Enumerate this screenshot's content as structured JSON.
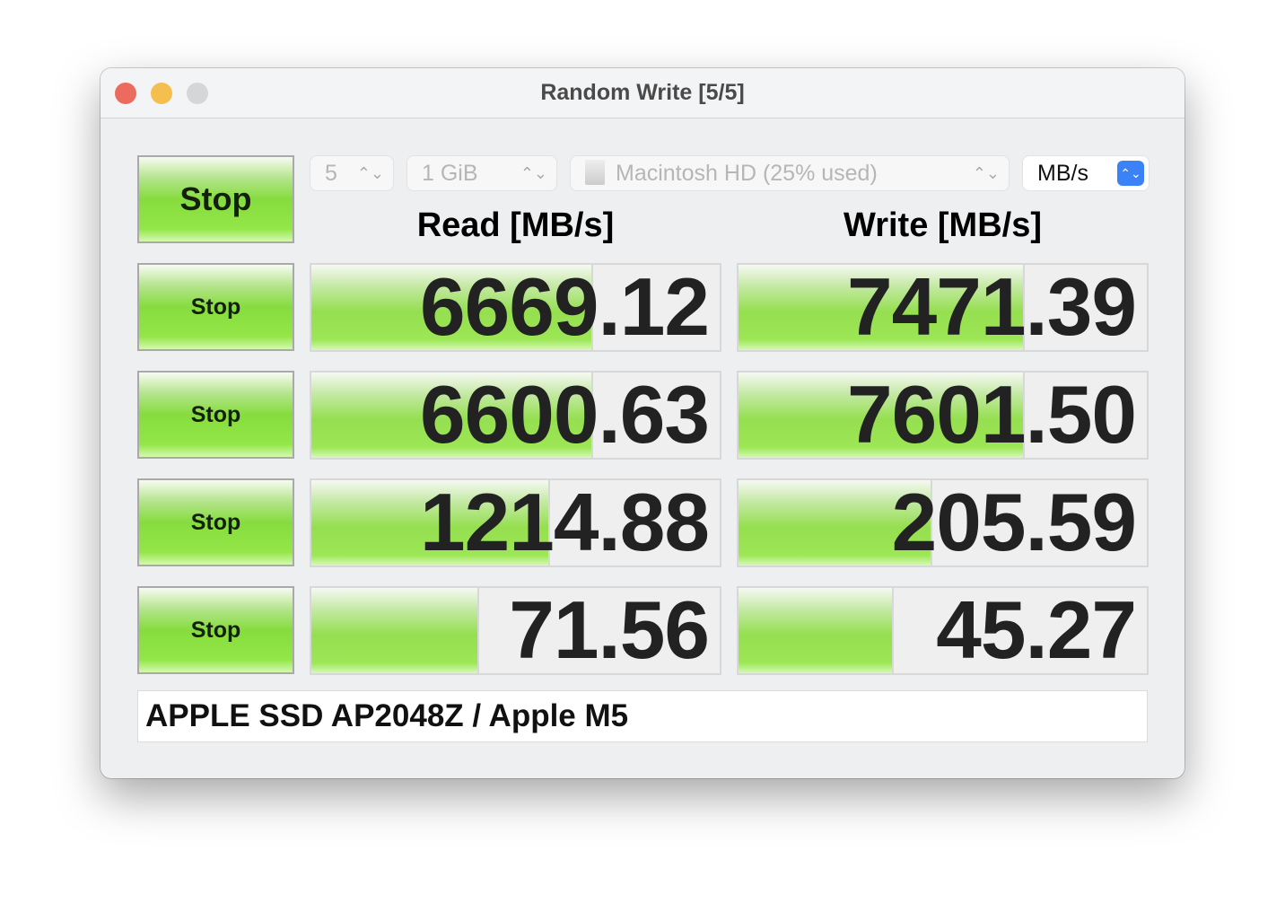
{
  "window": {
    "title": "Random Write [5/5]"
  },
  "controls": {
    "count": "5",
    "size": "1 GiB",
    "disk": "Macintosh HD (25% used)",
    "unit": "MB/s"
  },
  "headers": {
    "read": "Read [MB/s]",
    "write": "Write [MB/s]"
  },
  "main_button": "Stop",
  "rows": [
    {
      "button": "Stop",
      "read": "6669.12",
      "read_fill": 0.69,
      "write": "7471.39",
      "write_fill": 0.7
    },
    {
      "button": "Stop",
      "read": "6600.63",
      "read_fill": 0.69,
      "write": "7601.50",
      "write_fill": 0.7
    },
    {
      "button": "Stop",
      "read": "1214.88",
      "read_fill": 0.585,
      "write": "205.59",
      "write_fill": 0.475
    },
    {
      "button": "Stop",
      "read": "71.56",
      "read_fill": 0.41,
      "write": "45.27",
      "write_fill": 0.38
    }
  ],
  "footer": "APPLE SSD AP2048Z / Apple M5",
  "colors": {
    "close": "#ed6a5e",
    "minimize": "#f5bf4f",
    "zoom": "#d4d6d8",
    "accent": "#3a82f6",
    "bar": "#95df50"
  }
}
